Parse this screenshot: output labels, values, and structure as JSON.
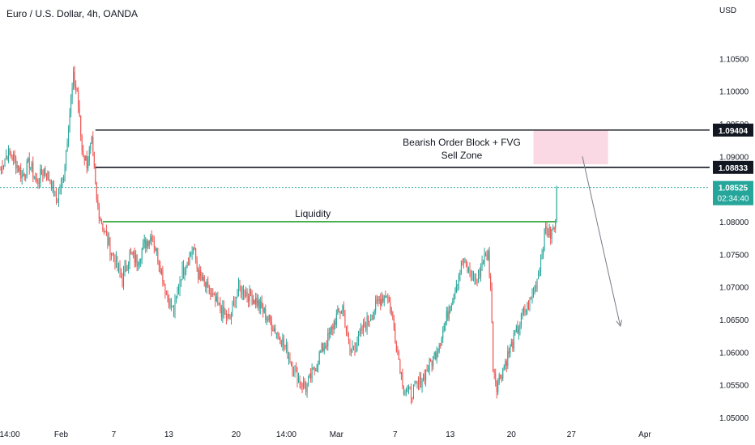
{
  "chart": {
    "title": "Euro / U.S. Dollar, 4h, OANDA",
    "currency": "USD"
  },
  "colors": {
    "up": "#26a69a",
    "down": "#ef5350",
    "zone_fill": "#f8c8d8",
    "liquidity": "#4caf50",
    "level_line": "#131722",
    "current_price_bg": "#26a69a",
    "level_label_bg": "#131722",
    "axis_text": "#131722",
    "arrow": "#787b86"
  },
  "chart_data": {
    "type": "candlestick",
    "title": "Euro / U.S. Dollar, 4h, OANDA",
    "ylim": [
      1.0495,
      1.1105
    ],
    "y_ticks": [
      "1.10500",
      "1.10000",
      "1.09500",
      "1.09000",
      "1.08500",
      "1.08000",
      "1.07500",
      "1.07000",
      "1.06500",
      "1.06000",
      "1.05500",
      "1.05000"
    ],
    "y_tick_values": [
      1.105,
      1.1,
      1.095,
      1.09,
      1.085,
      1.08,
      1.075,
      1.07,
      1.065,
      1.06,
      1.055,
      1.05
    ],
    "x_ticks": [
      "14:00",
      "Feb",
      "7",
      "13",
      "20",
      "14:00",
      "Mar",
      "7",
      "13",
      "20",
      "27",
      "Apr"
    ],
    "x_tick_index": [
      0,
      50,
      93,
      138,
      193,
      234,
      275,
      323,
      368,
      418,
      467,
      527
    ],
    "x_total": 580,
    "last_index": 455,
    "anchors": [
      [
        0,
        1.088
      ],
      [
        6,
        1.0905
      ],
      [
        12,
        1.0895
      ],
      [
        18,
        1.087
      ],
      [
        24,
        1.089
      ],
      [
        30,
        1.086
      ],
      [
        36,
        1.088
      ],
      [
        42,
        1.086
      ],
      [
        46,
        1.083
      ],
      [
        52,
        1.087
      ],
      [
        56,
        1.095
      ],
      [
        60,
        1.102
      ],
      [
        63,
        1.1
      ],
      [
        67,
        1.091
      ],
      [
        71,
        1.089
      ],
      [
        75,
        1.092
      ],
      [
        79,
        1.083
      ],
      [
        83,
        1.08
      ],
      [
        88,
        1.077
      ],
      [
        94,
        1.074
      ],
      [
        100,
        1.071
      ],
      [
        106,
        1.075
      ],
      [
        112,
        1.074
      ],
      [
        118,
        1.0765
      ],
      [
        124,
        1.078
      ],
      [
        130,
        1.074
      ],
      [
        136,
        1.069
      ],
      [
        142,
        1.066
      ],
      [
        148,
        1.072
      ],
      [
        154,
        1.0745
      ],
      [
        158,
        1.076
      ],
      [
        162,
        1.072
      ],
      [
        168,
        1.07
      ],
      [
        175,
        1.068
      ],
      [
        182,
        1.066
      ],
      [
        188,
        1.065
      ],
      [
        195,
        1.07
      ],
      [
        202,
        1.069
      ],
      [
        209,
        1.068
      ],
      [
        216,
        1.066
      ],
      [
        223,
        1.064
      ],
      [
        230,
        1.062
      ],
      [
        237,
        1.059
      ],
      [
        244,
        1.056
      ],
      [
        250,
        1.0545
      ],
      [
        256,
        1.057
      ],
      [
        262,
        1.06
      ],
      [
        268,
        1.062
      ],
      [
        274,
        1.065
      ],
      [
        280,
        1.067
      ],
      [
        286,
        1.06
      ],
      [
        292,
        1.062
      ],
      [
        298,
        1.064
      ],
      [
        304,
        1.066
      ],
      [
        310,
        1.068
      ],
      [
        316,
        1.069
      ],
      [
        320,
        1.066
      ],
      [
        325,
        1.06
      ],
      [
        330,
        1.0545
      ],
      [
        335,
        1.0535
      ],
      [
        342,
        1.055
      ],
      [
        348,
        1.057
      ],
      [
        354,
        1.059
      ],
      [
        360,
        1.062
      ],
      [
        366,
        1.066
      ],
      [
        372,
        1.07
      ],
      [
        378,
        1.074
      ],
      [
        384,
        1.072
      ],
      [
        390,
        1.071
      ],
      [
        394,
        1.074
      ],
      [
        399,
        1.075
      ],
      [
        401,
        1.07
      ],
      [
        403,
        1.058
      ],
      [
        406,
        1.055
      ],
      [
        410,
        1.057
      ],
      [
        416,
        1.06
      ],
      [
        422,
        1.063
      ],
      [
        428,
        1.066
      ],
      [
        434,
        1.068
      ],
      [
        440,
        1.072
      ],
      [
        446,
        1.079
      ],
      [
        450,
        1.078
      ],
      [
        454,
        1.0795
      ],
      [
        455,
        1.08525
      ]
    ],
    "levels": [
      {
        "name": "order-block-top",
        "value": 1.09404,
        "label": "1.09404",
        "from_index": 78
      },
      {
        "name": "order-block-bottom",
        "value": 1.08833,
        "label": "1.08833",
        "from_index": 78
      }
    ],
    "current_price": {
      "value": 1.08525,
      "label": "1.08525",
      "countdown": "02:34:40"
    },
    "liquidity": {
      "value": 1.08,
      "from_index": 84,
      "to_index": 454,
      "label": "Liquidity"
    },
    "zone": {
      "y_top": 1.0941,
      "y_bottom": 1.0888,
      "from_index": 436,
      "to_index": 497
    },
    "zone_label_lines": [
      "Bearish Order Block + FVG",
      "Sell Zone"
    ],
    "arrow": {
      "from": [
        476,
        1.09
      ],
      "to": [
        507,
        1.064
      ]
    }
  }
}
